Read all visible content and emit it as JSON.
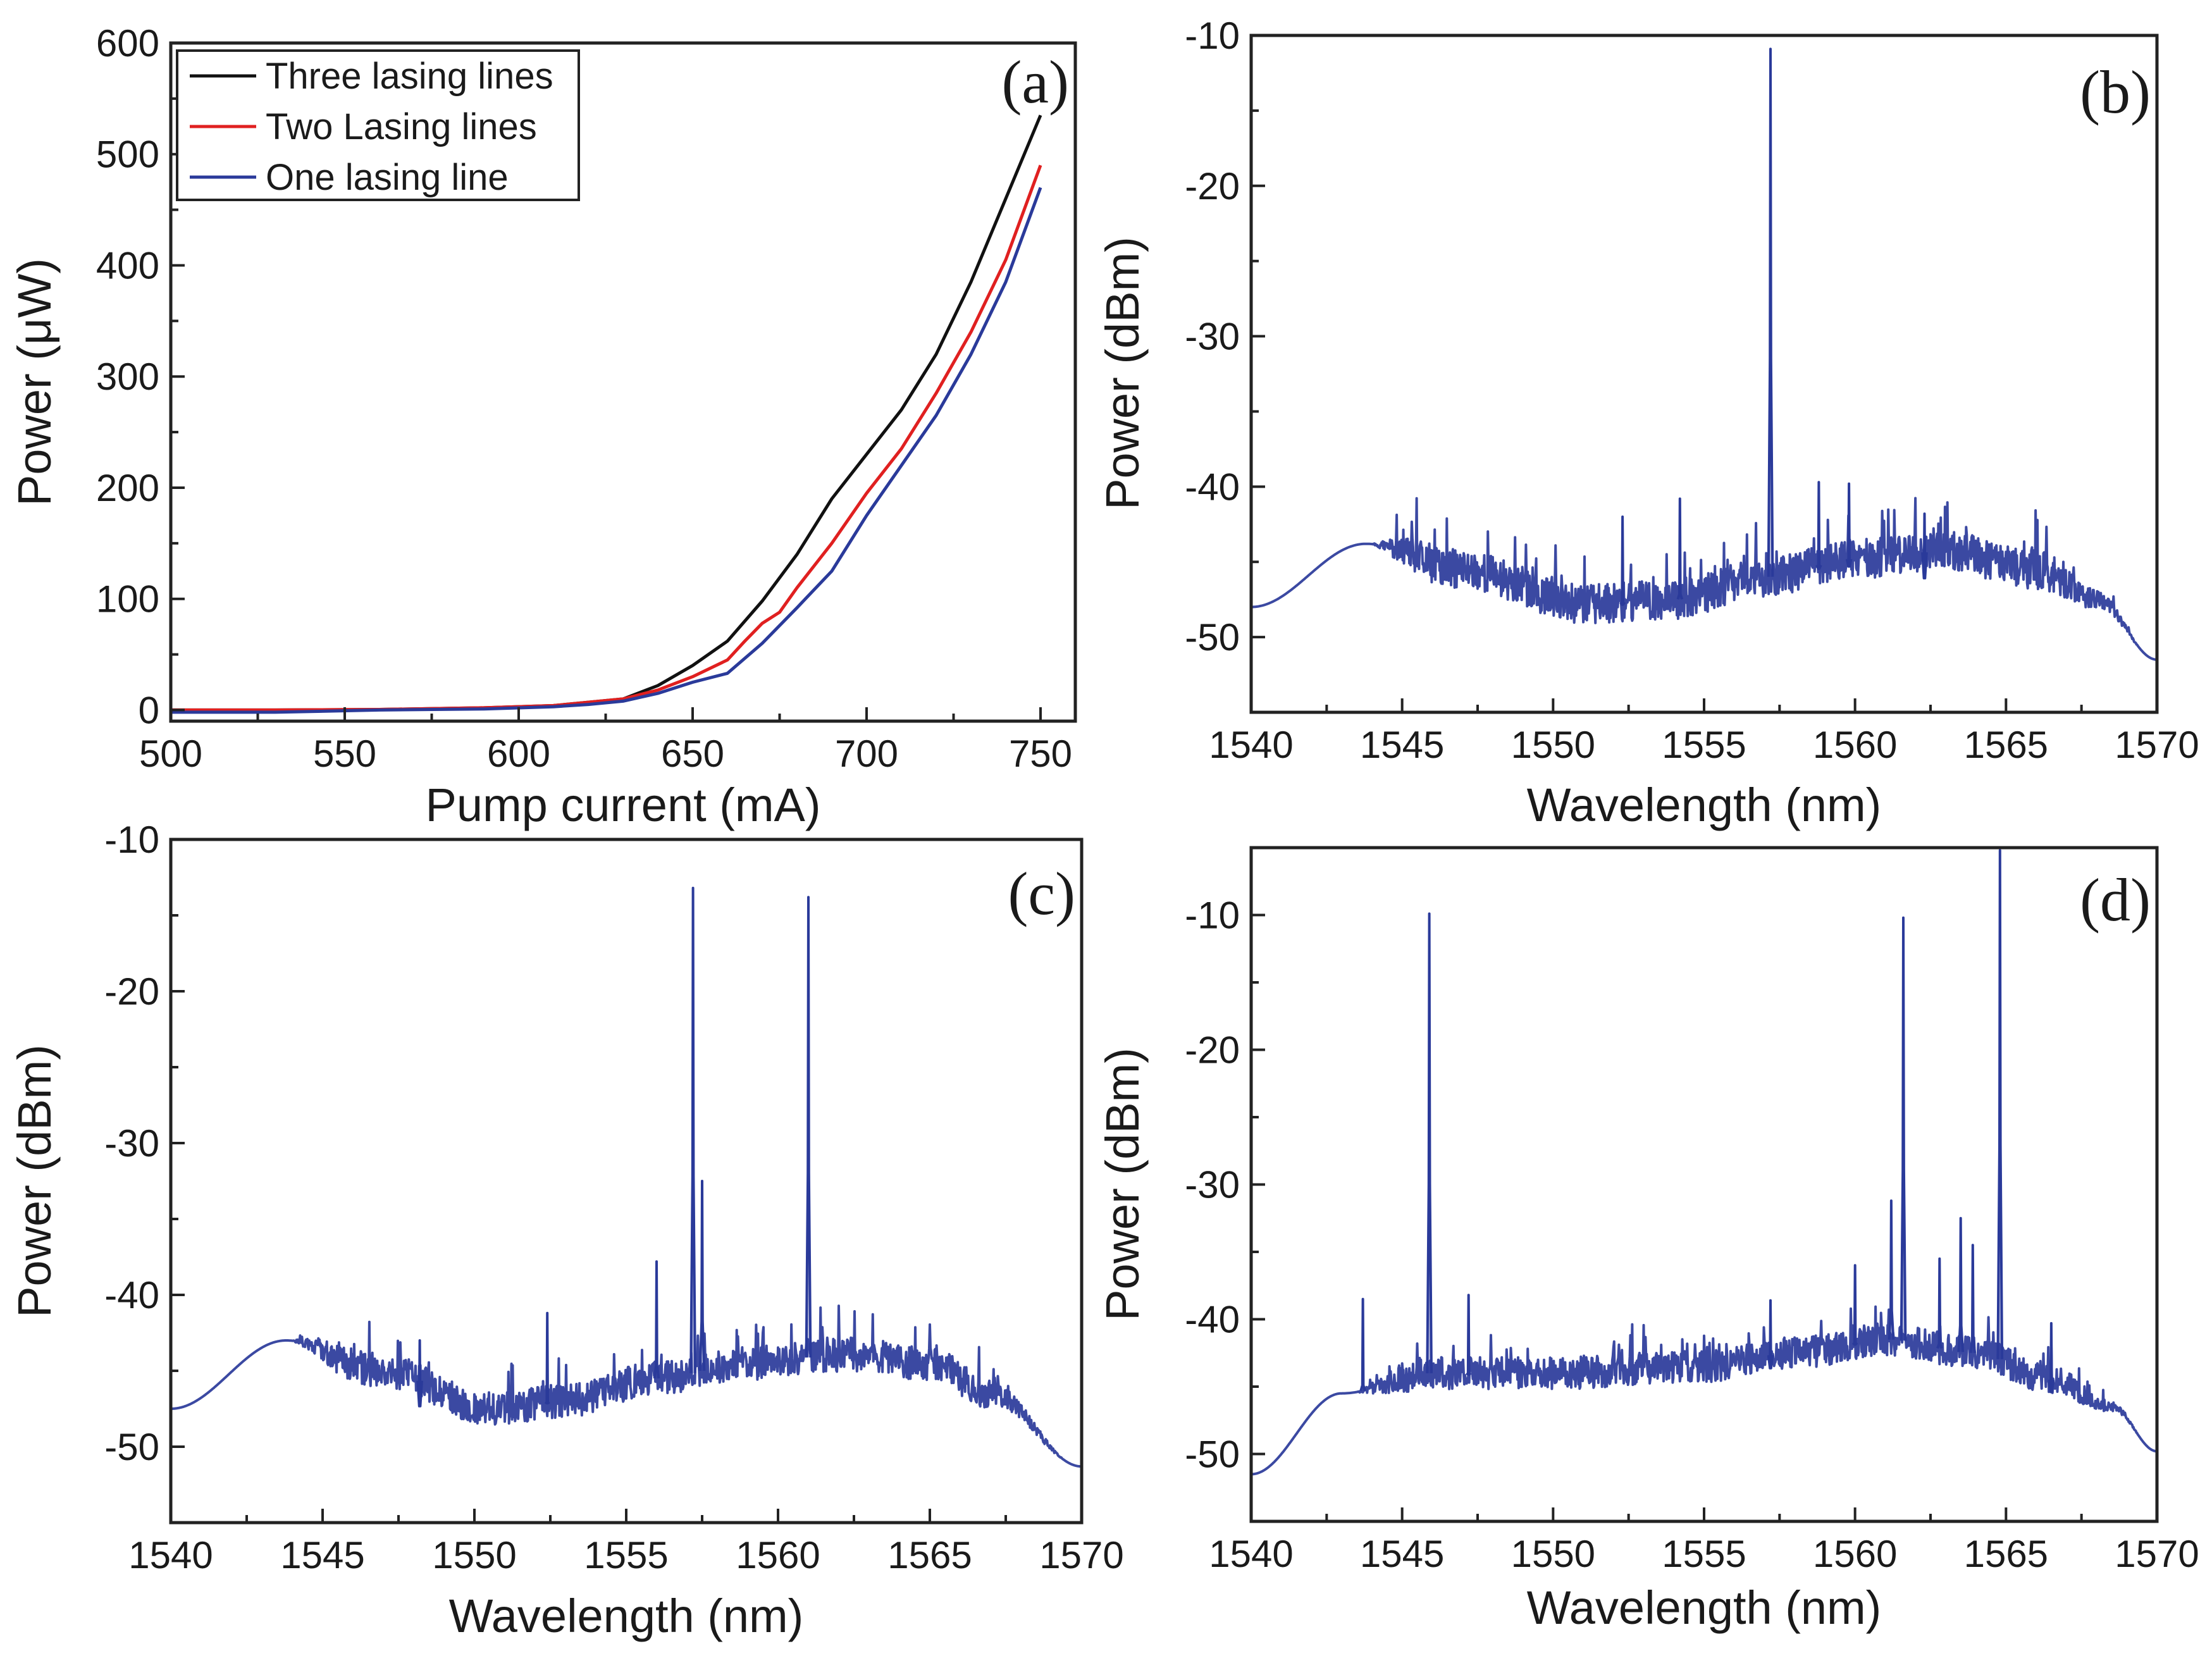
{
  "chart_data": [
    {
      "id": "a",
      "type": "line",
      "panel_label": "(a)",
      "xlabel": "Pump current (mA)",
      "ylabel": "Power (μW)",
      "xlim": [
        500,
        760
      ],
      "ylim": [
        -10,
        600
      ],
      "xticks": [
        "500",
        "550",
        "600",
        "650",
        "700",
        "750"
      ],
      "yticks": [
        "0",
        "100",
        "200",
        "300",
        "400",
        "500",
        "600"
      ],
      "legend_position": "top-left",
      "series": [
        {
          "name": "Three lasing lines",
          "color": "#111111",
          "x": [
            500,
            530,
            560,
            590,
            610,
            620,
            630,
            640,
            650,
            660,
            670,
            680,
            690,
            700,
            710,
            720,
            730,
            740,
            750
          ],
          "y": [
            0,
            0,
            0.5,
            2,
            4,
            7,
            10,
            22,
            40,
            62,
            98,
            140,
            190,
            230,
            270,
            320,
            385,
            460,
            535
          ]
        },
        {
          "name": "Two Lasing lines",
          "color": "#e02020",
          "x": [
            500,
            530,
            560,
            590,
            610,
            620,
            630,
            640,
            650,
            660,
            665,
            670,
            675,
            680,
            690,
            700,
            710,
            720,
            730,
            740,
            750
          ],
          "y": [
            0,
            0,
            0.5,
            2,
            4,
            7,
            10,
            18,
            30,
            45,
            62,
            78,
            88,
            110,
            150,
            195,
            235,
            285,
            340,
            405,
            490
          ]
        },
        {
          "name": "One lasing line",
          "color": "#2a3a9a",
          "x": [
            500,
            530,
            560,
            590,
            610,
            620,
            630,
            640,
            650,
            660,
            670,
            680,
            690,
            700,
            710,
            720,
            730,
            740,
            750
          ],
          "y": [
            -2,
            -2,
            0,
            1,
            3,
            5,
            8,
            15,
            25,
            33,
            60,
            92,
            125,
            175,
            220,
            265,
            320,
            385,
            470
          ]
        }
      ]
    },
    {
      "id": "b",
      "type": "line",
      "panel_label": "(b)",
      "xlabel": "Wavelength (nm)",
      "ylabel": "Power (dBm)",
      "xlim": [
        1540,
        1570
      ],
      "ylim": [
        -55,
        -10
      ],
      "xticks": [
        "1540",
        "1545",
        "1550",
        "1555",
        "1560",
        "1565",
        "1570"
      ],
      "yticks": [
        "-10",
        "-20",
        "-30",
        "-40",
        "-50"
      ],
      "color": "#2a3a9a",
      "baseline_points": [
        [
          1540,
          -48
        ],
        [
          1543.8,
          -43.8
        ],
        [
          1547,
          -45.5
        ],
        [
          1551,
          -47.8
        ],
        [
          1554,
          -47.5
        ],
        [
          1557,
          -46
        ],
        [
          1560,
          -44.8
        ],
        [
          1563,
          -44.3
        ],
        [
          1566,
          -45.5
        ],
        [
          1568,
          -47.5
        ],
        [
          1570,
          -51.5
        ]
      ],
      "noise_start": 1544,
      "noise_amplitude": 2.6,
      "peaks": [
        {
          "x": 1557.2,
          "y": -10.9
        },
        {
          "x": 1552.3,
          "y": -42
        },
        {
          "x": 1554.2,
          "y": -40.8
        },
        {
          "x": 1558.8,
          "y": -39.7
        },
        {
          "x": 1559.8,
          "y": -39.8
        },
        {
          "x": 1562.3,
          "y": -41.8
        }
      ]
    },
    {
      "id": "c",
      "type": "line",
      "panel_label": "(c)",
      "xlabel": "Wavelength (nm)",
      "ylabel": "Power (dBm)",
      "xlim": [
        1540,
        1570
      ],
      "ylim": [
        -55,
        -10
      ],
      "xticks": [
        "1540",
        "1545",
        "1550",
        "1555",
        "1560",
        "1565",
        "1570"
      ],
      "yticks": [
        "-10",
        "-20",
        "-30",
        "-40",
        "-50"
      ],
      "color": "#2a3a9a",
      "baseline_points": [
        [
          1540,
          -47.5
        ],
        [
          1543.8,
          -43
        ],
        [
          1547,
          -45
        ],
        [
          1550.5,
          -47.5
        ],
        [
          1553,
          -47
        ],
        [
          1556,
          -45.5
        ],
        [
          1559,
          -44.5
        ],
        [
          1562,
          -44
        ],
        [
          1565,
          -44.5
        ],
        [
          1567,
          -46.5
        ],
        [
          1570,
          -51.3
        ]
      ],
      "noise_start": 1544,
      "noise_amplitude": 2.2,
      "peaks": [
        {
          "x": 1557.2,
          "y": -13.2
        },
        {
          "x": 1557.5,
          "y": -32.5
        },
        {
          "x": 1561.0,
          "y": -13.8
        },
        {
          "x": 1556.0,
          "y": -37.8
        },
        {
          "x": 1552.4,
          "y": -41.2
        },
        {
          "x": 1548.2,
          "y": -43
        }
      ]
    },
    {
      "id": "d",
      "type": "line",
      "panel_label": "(d)",
      "xlabel": "Wavelength (nm)",
      "ylabel": "Power (dBm)",
      "xlim": [
        1540,
        1570
      ],
      "ylim": [
        -55,
        -5
      ],
      "xticks": [
        "1540",
        "1545",
        "1550",
        "1555",
        "1560",
        "1565",
        "1570"
      ],
      "yticks": [
        "-10",
        "-20",
        "-30",
        "-40",
        "-50"
      ],
      "color": "#2a3a9a",
      "baseline_points": [
        [
          1540,
          -51.5
        ],
        [
          1543,
          -45.5
        ],
        [
          1546,
          -44
        ],
        [
          1550,
          -44
        ],
        [
          1555,
          -43.5
        ],
        [
          1558,
          -42.5
        ],
        [
          1561,
          -41.5
        ],
        [
          1564,
          -42.5
        ],
        [
          1566.5,
          -44.5
        ],
        [
          1568.5,
          -46.5
        ],
        [
          1570,
          -49.8
        ]
      ],
      "noise_start": 1543.5,
      "noise_amplitude": 2.4,
      "peaks": [
        {
          "x": 1545.9,
          "y": -9.9
        },
        {
          "x": 1561.6,
          "y": -10.2
        },
        {
          "x": 1564.8,
          "y": -5.2
        },
        {
          "x": 1543.7,
          "y": -38.5
        },
        {
          "x": 1547.2,
          "y": -38.2
        },
        {
          "x": 1557.2,
          "y": -38.6
        },
        {
          "x": 1560.0,
          "y": -36
        },
        {
          "x": 1561.2,
          "y": -31.2
        },
        {
          "x": 1563.5,
          "y": -32.5
        },
        {
          "x": 1563.9,
          "y": -34.5
        },
        {
          "x": 1562.8,
          "y": -35.5
        },
        {
          "x": 1566.5,
          "y": -40.3
        }
      ]
    }
  ]
}
